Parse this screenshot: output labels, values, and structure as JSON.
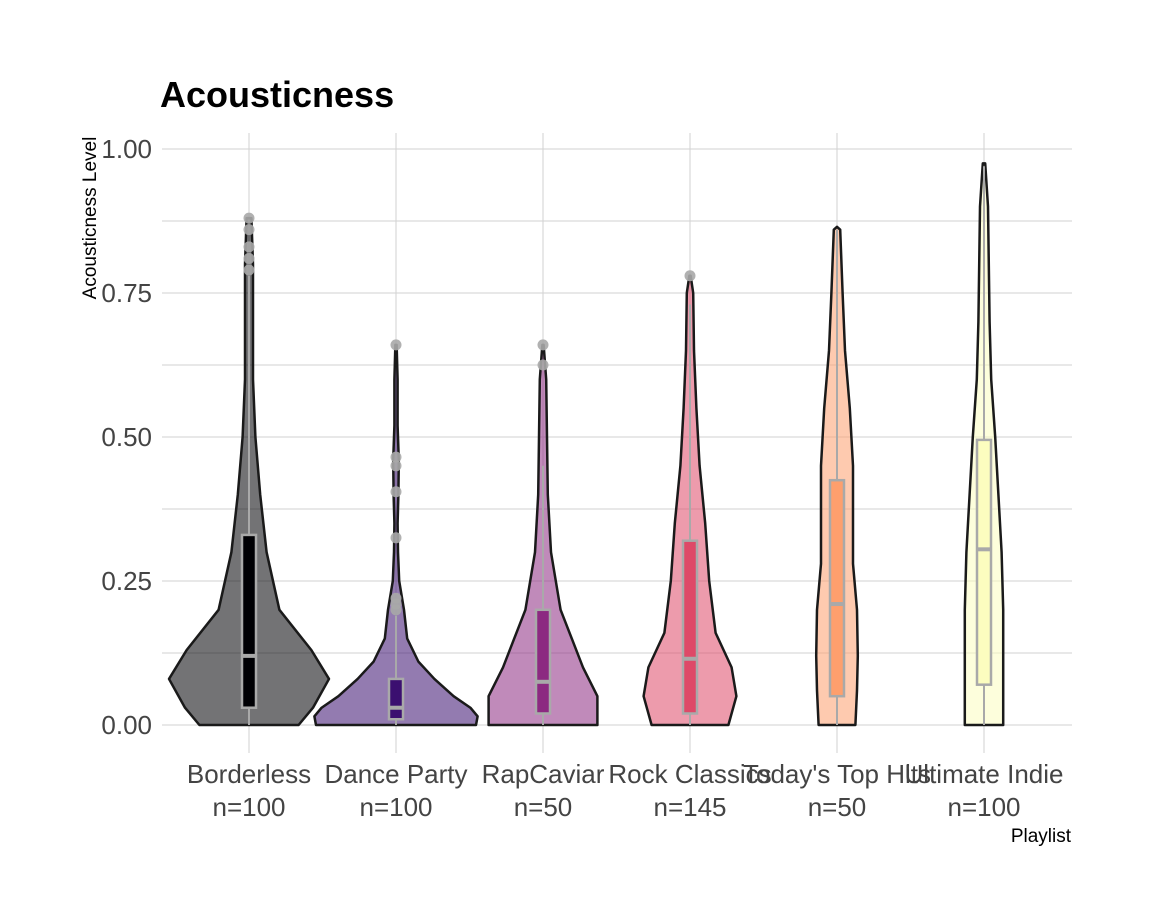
{
  "chart_data": {
    "type": "violin",
    "title": "Acousticness",
    "xlabel": "Playlist",
    "ylabel": "Acousticness Level",
    "ylim": [
      0,
      1
    ],
    "yticks": [
      0.0,
      0.25,
      0.5,
      0.75,
      1.0
    ],
    "ytick_labels": [
      "0.00",
      "0.25",
      "0.50",
      "0.75",
      "1.00"
    ],
    "grid": true,
    "categories": [
      {
        "name": "Borderless",
        "n_label": "n=100",
        "color": "#000004",
        "max": 0.88,
        "box": {
          "q1": 0.03,
          "median": 0.12,
          "q3": 0.33,
          "whisker_low": 0.0,
          "whisker_high": 0.78
        },
        "outliers": [
          0.79,
          0.81,
          0.83,
          0.86,
          0.88
        ],
        "density": [
          [
            0.0,
            0.62
          ],
          [
            0.03,
            0.8
          ],
          [
            0.08,
            1.0
          ],
          [
            0.13,
            0.78
          ],
          [
            0.2,
            0.38
          ],
          [
            0.3,
            0.22
          ],
          [
            0.4,
            0.14
          ],
          [
            0.5,
            0.08
          ],
          [
            0.6,
            0.05
          ],
          [
            0.7,
            0.05
          ],
          [
            0.8,
            0.05
          ],
          [
            0.88,
            0.03
          ]
        ]
      },
      {
        "name": "Dance Party",
        "n_label": "n=100",
        "color": "#3B0F70",
        "max": 0.66,
        "box": {
          "q1": 0.01,
          "median": 0.03,
          "q3": 0.08,
          "whisker_low": 0.0,
          "whisker_high": 0.19
        },
        "outliers": [
          0.2,
          0.21,
          0.22,
          0.325,
          0.405,
          0.45,
          0.465,
          0.66
        ],
        "density": [
          [
            0.0,
            1.0
          ],
          [
            0.015,
            1.02
          ],
          [
            0.03,
            0.93
          ],
          [
            0.05,
            0.72
          ],
          [
            0.08,
            0.48
          ],
          [
            0.11,
            0.28
          ],
          [
            0.15,
            0.14
          ],
          [
            0.2,
            0.1
          ],
          [
            0.25,
            0.04
          ],
          [
            0.3,
            0.025
          ],
          [
            0.35,
            0.02
          ],
          [
            0.4,
            0.03
          ],
          [
            0.46,
            0.035
          ],
          [
            0.52,
            0.02
          ],
          [
            0.6,
            0.02
          ],
          [
            0.66,
            0.008
          ]
        ]
      },
      {
        "name": "RapCaviar",
        "n_label": "n=50",
        "color": "#8C2981",
        "max": 0.66,
        "box": {
          "q1": 0.02,
          "median": 0.075,
          "q3": 0.2,
          "whisker_low": 0.0,
          "whisker_high": 0.45
        },
        "outliers": [
          0.625,
          0.66
        ],
        "density": [
          [
            0.0,
            0.68
          ],
          [
            0.05,
            0.68
          ],
          [
            0.1,
            0.5
          ],
          [
            0.15,
            0.36
          ],
          [
            0.2,
            0.22
          ],
          [
            0.3,
            0.1
          ],
          [
            0.4,
            0.06
          ],
          [
            0.5,
            0.05
          ],
          [
            0.6,
            0.04
          ],
          [
            0.66,
            0.008
          ]
        ]
      },
      {
        "name": "Rock Classics",
        "n_label": "n=145",
        "color": "#DE4968",
        "max": 0.78,
        "box": {
          "q1": 0.02,
          "median": 0.115,
          "q3": 0.32,
          "whisker_low": 0.0,
          "whisker_high": 0.73
        },
        "outliers": [
          0.78
        ],
        "density": [
          [
            0.0,
            0.48
          ],
          [
            0.05,
            0.58
          ],
          [
            0.1,
            0.52
          ],
          [
            0.16,
            0.32
          ],
          [
            0.25,
            0.24
          ],
          [
            0.35,
            0.19
          ],
          [
            0.45,
            0.12
          ],
          [
            0.55,
            0.08
          ],
          [
            0.65,
            0.05
          ],
          [
            0.75,
            0.04
          ],
          [
            0.78,
            0.008
          ]
        ]
      },
      {
        "name": "Today's Top Hits",
        "n_label": "n=50",
        "color": "#FE9F6D",
        "max": 0.865,
        "box": {
          "q1": 0.05,
          "median": 0.21,
          "q3": 0.425,
          "whisker_low": 0.0,
          "whisker_high": 0.86
        },
        "outliers": [],
        "density": [
          [
            0.0,
            0.23
          ],
          [
            0.06,
            0.25
          ],
          [
            0.12,
            0.26
          ],
          [
            0.2,
            0.25
          ],
          [
            0.28,
            0.2
          ],
          [
            0.36,
            0.2
          ],
          [
            0.45,
            0.2
          ],
          [
            0.55,
            0.16
          ],
          [
            0.65,
            0.1
          ],
          [
            0.75,
            0.07
          ],
          [
            0.86,
            0.04
          ]
        ]
      },
      {
        "name": "Ultimate Indie",
        "n_label": "n=100",
        "color": "#FCFDBF",
        "max": 0.975,
        "box": {
          "q1": 0.07,
          "median": 0.305,
          "q3": 0.495,
          "whisker_low": 0.0,
          "whisker_high": 0.97
        },
        "outliers": [],
        "density": [
          [
            0.0,
            0.24
          ],
          [
            0.1,
            0.24
          ],
          [
            0.2,
            0.24
          ],
          [
            0.3,
            0.22
          ],
          [
            0.4,
            0.18
          ],
          [
            0.5,
            0.14
          ],
          [
            0.6,
            0.09
          ],
          [
            0.7,
            0.07
          ],
          [
            0.8,
            0.06
          ],
          [
            0.9,
            0.05
          ],
          [
            0.975,
            0.015
          ]
        ]
      }
    ]
  }
}
